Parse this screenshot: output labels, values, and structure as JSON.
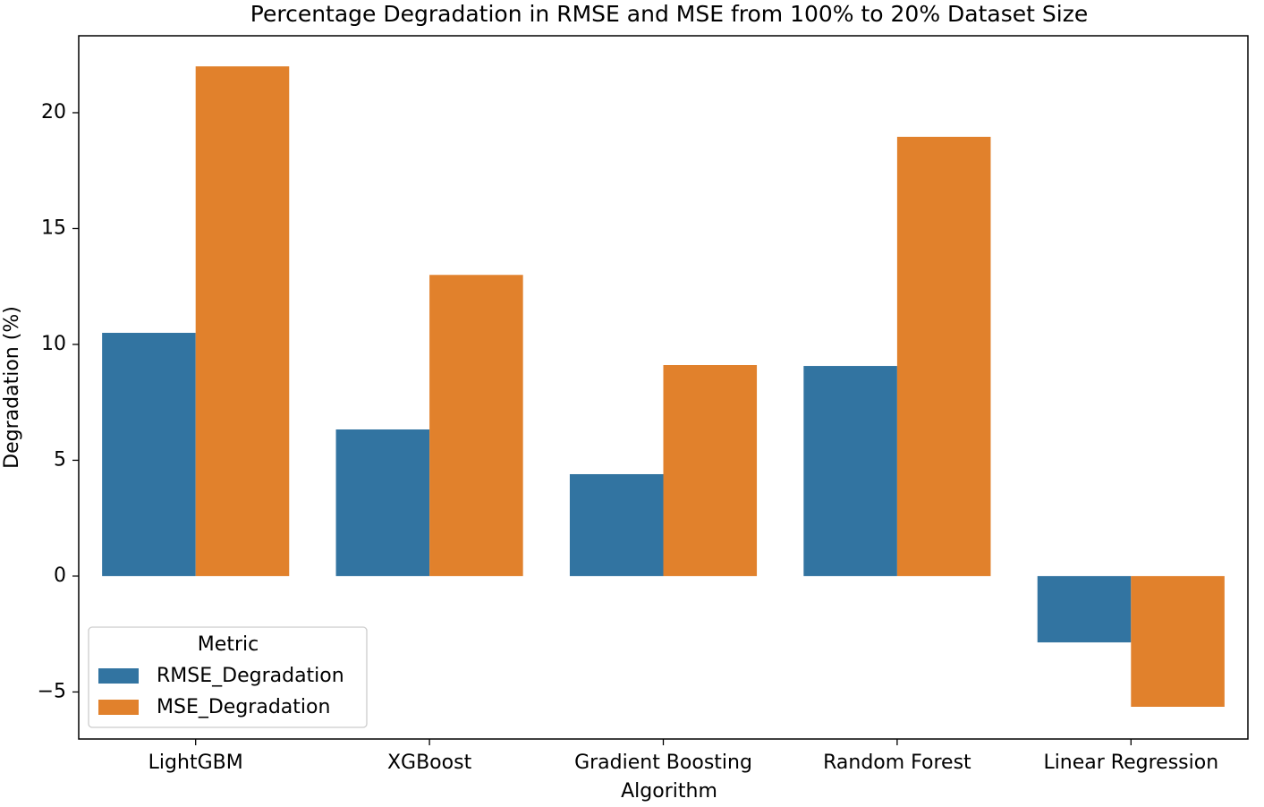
{
  "chart_data": {
    "type": "bar",
    "title": "Percentage Degradation in RMSE and MSE from 100% to 20% Dataset Size",
    "x_label": "Algorithm",
    "y_label": "Degradation (%)",
    "categories": [
      "LightGBM",
      "XGBoost",
      "Gradient Boosting",
      "Random Forest",
      "Linear Regression"
    ],
    "series": [
      {
        "name": "RMSE_Degradation",
        "color": "#3274a1",
        "values": [
          10.5,
          6.33,
          4.4,
          9.07,
          -2.86
        ]
      },
      {
        "name": "MSE_Degradation",
        "color": "#e1812c",
        "values": [
          22.0,
          13.0,
          9.11,
          18.96,
          -5.64
        ]
      }
    ],
    "legend_title": "Metric",
    "legend": "lower left",
    "ylim": [
      -7.03,
      23.32
    ],
    "yticks": [
      {
        "value": -5,
        "label": "−5"
      },
      0,
      5,
      10,
      15,
      20
    ],
    "grid": false
  }
}
